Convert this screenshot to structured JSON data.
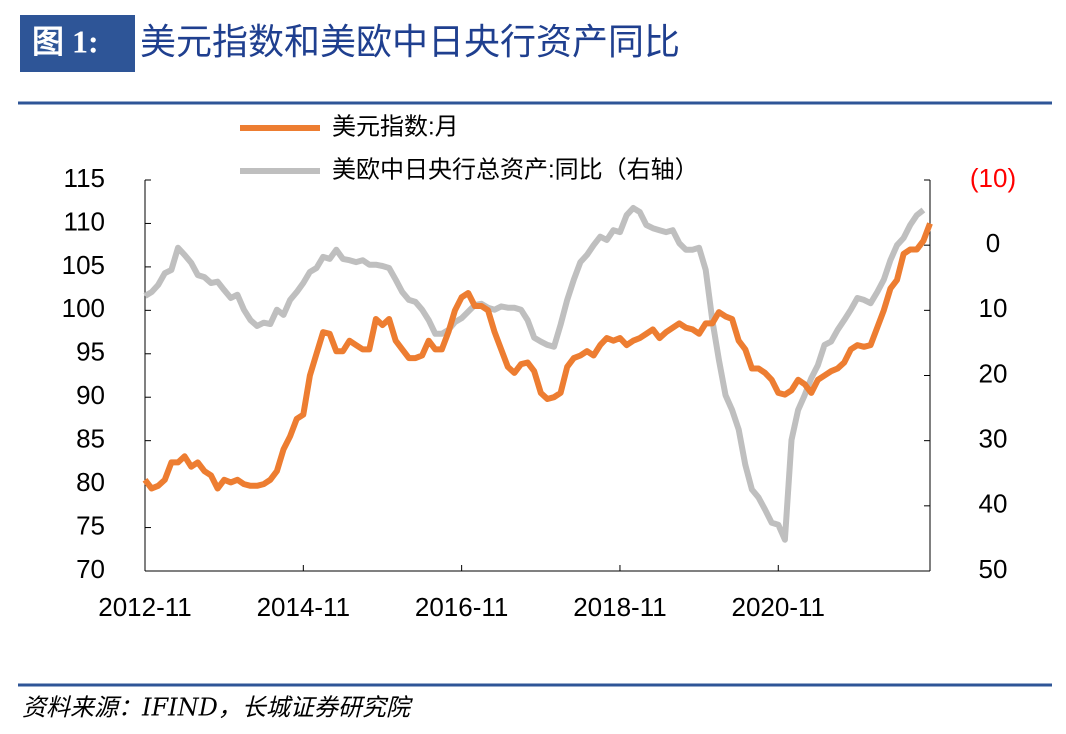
{
  "header": {
    "label": "图 1:",
    "title": "美元指数和美欧中日央行资产同比"
  },
  "chart_data": {
    "type": "line",
    "categories": [
      "2012-11",
      null,
      null,
      null,
      null,
      null,
      null,
      null,
      null,
      null,
      null,
      null,
      null,
      null,
      null,
      null,
      null,
      null,
      null,
      null,
      null,
      null,
      null,
      null,
      "2014-11",
      null,
      null,
      null,
      null,
      null,
      null,
      null,
      null,
      null,
      null,
      null,
      null,
      null,
      null,
      null,
      null,
      null,
      null,
      null,
      null,
      null,
      null,
      null,
      "2016-11",
      null,
      null,
      null,
      null,
      null,
      null,
      null,
      null,
      null,
      null,
      null,
      null,
      null,
      null,
      null,
      null,
      null,
      null,
      null,
      null,
      null,
      null,
      null,
      "2018-11",
      null,
      null,
      null,
      null,
      null,
      null,
      null,
      null,
      null,
      null,
      null,
      null,
      null,
      null,
      null,
      null,
      null,
      null,
      null,
      null,
      null,
      null,
      null,
      "2020-11",
      null,
      null,
      null,
      null,
      null,
      null,
      null,
      null,
      null,
      null,
      null,
      null,
      null,
      null,
      null,
      null,
      null,
      null,
      null,
      null,
      null,
      null,
      null
    ],
    "series": [
      {
        "name": "美元指数:月",
        "color": "#ED7D31",
        "axis": "y",
        "values": [
          80.5,
          79.5,
          79.8,
          80.5,
          82.5,
          82.5,
          83.2,
          82,
          82.5,
          81.5,
          81,
          79.5,
          80.5,
          80.2,
          80.5,
          80,
          79.8,
          79.8,
          80,
          80.5,
          81.5,
          84,
          85.5,
          87.5,
          88,
          92.5,
          95,
          97.5,
          97.3,
          95.3,
          95.3,
          96.5,
          96,
          95.5,
          95.5,
          99,
          98.3,
          99,
          96.5,
          95.5,
          94.5,
          94.5,
          94.8,
          96.5,
          95.5,
          95.5,
          97.5,
          100,
          101.5,
          102,
          100.5,
          100.5,
          100,
          97.5,
          95.5,
          93.5,
          92.8,
          93.8,
          94,
          93,
          90.5,
          89.8,
          90,
          90.5,
          93.5,
          94.5,
          94.8,
          95.3,
          94.8,
          96,
          96.8,
          96.5,
          96.8,
          96,
          96.5,
          96.8,
          97.3,
          97.8,
          96.8,
          97.5,
          98,
          98.5,
          98,
          97.8,
          97.3,
          98.5,
          98.5,
          99.8,
          99.3,
          99,
          96.5,
          95.5,
          93.3,
          93.3,
          92.8,
          92,
          90.5,
          90.3,
          90.8,
          92,
          91.5,
          90.5,
          92,
          92.5,
          93,
          93.3,
          94,
          95.5,
          96,
          95.8,
          96,
          98,
          100,
          102.5,
          103.5,
          106.5,
          107,
          107,
          108,
          110
        ]
      },
      {
        "name": "美欧中日央行总资产:同比（右轴）",
        "color": "#BFBFBF",
        "axis": "y2",
        "values": [
          7.8,
          7.2,
          6.1,
          4.3,
          3.8,
          0.4,
          1.5,
          2.7,
          4.6,
          4.9,
          5.8,
          5.6,
          6.9,
          8.1,
          7.6,
          9.9,
          11.5,
          12.4,
          11.9,
          12.1,
          9.9,
          10.7,
          8.4,
          7.2,
          5.8,
          4.1,
          3.5,
          1.8,
          2.1,
          0.7,
          2.1,
          2.3,
          2.6,
          2.3,
          3,
          3,
          3.2,
          3.5,
          5.3,
          7.2,
          8.4,
          8.7,
          9.9,
          11.5,
          13.6,
          13.6,
          13,
          11.8,
          11.2,
          10.2,
          9.2,
          9,
          9.6,
          9.9,
          9.4,
          9.6,
          9.6,
          9.9,
          11.5,
          14.2,
          14.8,
          15.3,
          15.6,
          12.2,
          8.4,
          5.3,
          2.6,
          1.5,
          0,
          -1.3,
          -0.8,
          -2.3,
          -2,
          -4.6,
          -5.7,
          -5.1,
          -3.1,
          -2.6,
          -2.3,
          -2,
          -2.3,
          -0.3,
          0.7,
          0.7,
          0.4,
          3.8,
          11.5,
          17.6,
          23,
          25.3,
          28.3,
          33.7,
          37.5,
          38.7,
          40.6,
          42.6,
          42.9,
          45.2,
          29.9,
          25.3,
          23,
          20.4,
          18.4,
          15.3,
          14.8,
          13,
          11.5,
          9.9,
          8.1,
          8.4,
          8.9,
          7.2,
          5.3,
          2.3,
          0,
          -1.1,
          -3.1,
          -4.6,
          -5.4,
          null
        ]
      }
    ],
    "ylim": [
      70,
      115
    ],
    "yticks": [
      70,
      75,
      80,
      85,
      90,
      95,
      100,
      105,
      110,
      115
    ],
    "y2lim": [
      -10,
      50
    ],
    "y2_inverted": true,
    "y2ticks": [
      {
        "value": -10,
        "label": "(10)"
      },
      0,
      10,
      20,
      30,
      40,
      50
    ],
    "y2_negative_color": "#FF0000",
    "legend": "top",
    "grid": false
  },
  "footer": {
    "source": "资料来源：IFIND，长城证券研究院"
  }
}
